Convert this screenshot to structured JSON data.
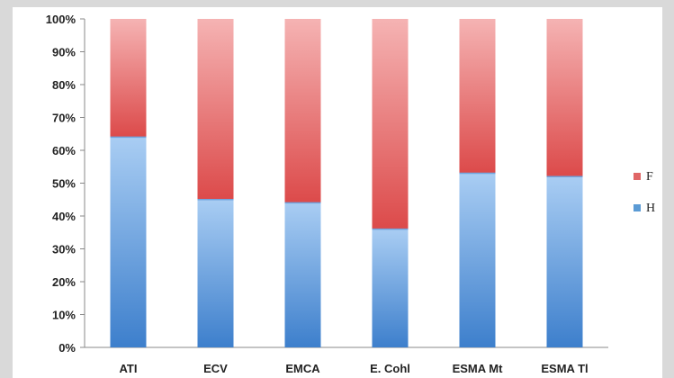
{
  "chart_data": {
    "type": "bar",
    "stacked": true,
    "percent": true,
    "categories": [
      "ATI",
      "ECV",
      "EMCA",
      "E. Cohl",
      "ESMA Mt",
      "ESMA Tl"
    ],
    "series": [
      {
        "name": "H",
        "values": [
          64,
          45,
          44,
          36,
          53,
          52
        ],
        "color": "#5b9bd5"
      },
      {
        "name": "F",
        "values": [
          36,
          55,
          56,
          64,
          47,
          48
        ],
        "color": "#e06666"
      }
    ],
    "ylim": [
      0,
      100
    ],
    "yticks": [
      "0%",
      "10%",
      "20%",
      "30%",
      "40%",
      "50%",
      "60%",
      "70%",
      "80%",
      "90%",
      "100%"
    ],
    "legend": {
      "position": "right",
      "order": [
        "F",
        "H"
      ]
    },
    "grid": false
  }
}
